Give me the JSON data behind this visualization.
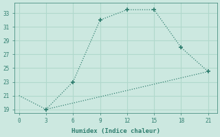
{
  "line1_x": [
    3,
    6,
    9,
    12,
    15,
    18,
    21
  ],
  "line1_y": [
    19,
    23,
    32,
    33.5,
    33.5,
    28,
    24.5
  ],
  "line2_x": [
    0,
    3,
    21
  ],
  "line2_y": [
    21,
    19,
    24.5
  ],
  "line_color": "#2e7d6e",
  "bg_color": "#cce8e0",
  "grid_color": "#b0d8cc",
  "xlabel": "Humidex (Indice chaleur)",
  "xlim": [
    -0.5,
    22
  ],
  "ylim": [
    18.5,
    34.5
  ],
  "xticks": [
    0,
    3,
    6,
    9,
    12,
    15,
    18,
    21
  ],
  "yticks": [
    19,
    21,
    23,
    25,
    27,
    29,
    31,
    33
  ],
  "marker": "+"
}
